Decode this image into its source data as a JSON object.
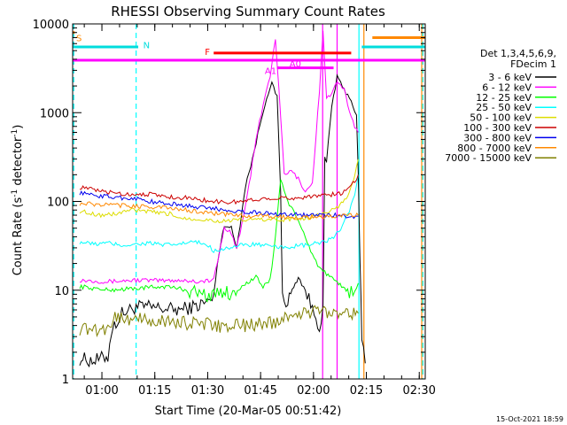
{
  "chart_data": {
    "type": "line",
    "title": "RHESSI Observing Summary Count Rates",
    "xlabel": "Start Time (20-Mar-05 00:51:42)",
    "ylabel": "Count Rate (s",
    "ylabel_sup": "-1",
    "ylabel_tail": " detector",
    "ylabel_sup2": "-1",
    "ylabel_end": ")",
    "x_range_minutes": [
      0.0,
      100.0
    ],
    "y_range": [
      1,
      10000
    ],
    "y_scale": "log",
    "x_ticks": [
      {
        "label": "01:00",
        "t": 8.3
      },
      {
        "label": "01:15",
        "t": 23.3
      },
      {
        "label": "01:30",
        "t": 38.3
      },
      {
        "label": "01:45",
        "t": 53.3
      },
      {
        "label": "02:00",
        "t": 68.3
      },
      {
        "label": "02:15",
        "t": 83.3
      },
      {
        "label": "02:30",
        "t": 98.3
      }
    ],
    "y_ticks": [
      {
        "label": "1",
        "v": 1
      },
      {
        "label": "10",
        "v": 10
      },
      {
        "label": "100",
        "v": 100
      },
      {
        "label": "1000",
        "v": 1000
      },
      {
        "label": "10000",
        "v": 10000
      }
    ],
    "legend_header": [
      "Det 1,3,4,5,6,9,",
      "FDecim 1"
    ],
    "legend_placement": "right",
    "series": [
      {
        "name": "3 - 6 keV",
        "color": "#000000",
        "points": [
          [
            2,
            1.7
          ],
          [
            6,
            1.6
          ],
          [
            10,
            1.8
          ],
          [
            11,
            3.5
          ],
          [
            14,
            5.5
          ],
          [
            18,
            6.5
          ],
          [
            22,
            6.4
          ],
          [
            26,
            6.2
          ],
          [
            30,
            6.0
          ],
          [
            35,
            6.6
          ],
          [
            40,
            8
          ],
          [
            41,
            20
          ],
          [
            43,
            55
          ],
          [
            45,
            50
          ],
          [
            46.5,
            30
          ],
          [
            47.5,
            55
          ],
          [
            49,
            150
          ],
          [
            51,
            300
          ],
          [
            53,
            700
          ],
          [
            55,
            1500
          ],
          [
            56.5,
            2100
          ],
          [
            58,
            1500
          ],
          [
            59,
            130
          ],
          [
            59.5,
            8
          ],
          [
            61,
            7.5
          ],
          [
            64,
            14
          ],
          [
            66,
            10
          ],
          [
            68,
            6
          ],
          [
            70,
            4
          ],
          [
            71,
            6
          ],
          [
            71.5,
            300
          ],
          [
            72,
            280
          ],
          [
            73.5,
            1200
          ],
          [
            75,
            2500
          ],
          [
            77,
            1800
          ],
          [
            79,
            1400
          ],
          [
            80.5,
            900
          ],
          [
            81,
            200
          ],
          [
            81.5,
            20
          ],
          [
            82,
            3
          ],
          [
            83,
            1.5
          ]
        ]
      },
      {
        "name": "6 - 12 keV",
        "color": "#ff00ff",
        "points": [
          [
            2,
            13
          ],
          [
            10,
            12.5
          ],
          [
            18,
            13
          ],
          [
            26,
            12.8
          ],
          [
            30,
            13
          ],
          [
            36,
            12.5
          ],
          [
            40,
            13
          ],
          [
            41,
            20
          ],
          [
            43,
            50
          ],
          [
            45,
            45
          ],
          [
            46.5,
            30
          ],
          [
            48,
            55
          ],
          [
            50,
            150
          ],
          [
            52,
            500
          ],
          [
            54,
            1200
          ],
          [
            56,
            2600
          ],
          [
            57.5,
            7000
          ],
          [
            59,
            900
          ],
          [
            60,
            200
          ],
          [
            62,
            220
          ],
          [
            64,
            180
          ],
          [
            66,
            130
          ],
          [
            68,
            160
          ],
          [
            70,
            1800
          ],
          [
            71,
            8000
          ],
          [
            72,
            1500
          ],
          [
            73.5,
            1600
          ],
          [
            75,
            2200
          ],
          [
            77,
            1800
          ],
          [
            79,
            900
          ],
          [
            80,
            700
          ],
          [
            81,
            600
          ]
        ]
      },
      {
        "name": "12 - 25 keV",
        "color": "#00ff00",
        "points": [
          [
            2,
            11
          ],
          [
            10,
            10
          ],
          [
            18,
            10.5
          ],
          [
            26,
            11
          ],
          [
            30,
            10.5
          ],
          [
            35,
            9.5
          ],
          [
            40,
            8.5
          ],
          [
            42,
            10
          ],
          [
            45,
            9
          ],
          [
            48,
            11
          ],
          [
            52,
            14
          ],
          [
            54,
            11
          ],
          [
            56,
            13
          ],
          [
            57.5,
            40
          ],
          [
            59,
            180
          ],
          [
            61,
            100
          ],
          [
            64,
            60
          ],
          [
            66,
            40
          ],
          [
            68,
            25
          ],
          [
            70,
            18
          ],
          [
            72,
            15
          ],
          [
            75,
            12
          ],
          [
            78,
            10
          ],
          [
            80,
            9
          ],
          [
            81,
            12
          ]
        ]
      },
      {
        "name": "25 - 50 keV",
        "color": "#00ffff",
        "points": [
          [
            2,
            35
          ],
          [
            6,
            33
          ],
          [
            10,
            34
          ],
          [
            14,
            32
          ],
          [
            18,
            33
          ],
          [
            22,
            34
          ],
          [
            26,
            32
          ],
          [
            30,
            33
          ],
          [
            34,
            35
          ],
          [
            38,
            33
          ],
          [
            40,
            28
          ],
          [
            44,
            30
          ],
          [
            48,
            32
          ],
          [
            52,
            33
          ],
          [
            56,
            31
          ],
          [
            58,
            30
          ],
          [
            62,
            31
          ],
          [
            66,
            32
          ],
          [
            70,
            34
          ],
          [
            74,
            38
          ],
          [
            76,
            50
          ],
          [
            78,
            70
          ],
          [
            80,
            120
          ],
          [
            81,
            200
          ]
        ]
      },
      {
        "name": "50 - 100 keV",
        "color": "#dddd00",
        "points": [
          [
            2,
            78
          ],
          [
            8,
            70
          ],
          [
            12,
            72
          ],
          [
            16,
            80
          ],
          [
            20,
            78
          ],
          [
            24,
            74
          ],
          [
            28,
            72
          ],
          [
            30,
            66
          ],
          [
            34,
            64
          ],
          [
            38,
            62
          ],
          [
            42,
            60
          ],
          [
            46,
            61
          ],
          [
            50,
            62
          ],
          [
            54,
            63
          ],
          [
            58,
            62
          ],
          [
            62,
            63
          ],
          [
            66,
            65
          ],
          [
            70,
            70
          ],
          [
            74,
            80
          ],
          [
            78,
            110
          ],
          [
            80,
            200
          ],
          [
            81,
            300
          ]
        ]
      },
      {
        "name": "100 - 300 keV",
        "color": "#cc0000",
        "points": [
          [
            2,
            145
          ],
          [
            8,
            130
          ],
          [
            12,
            125
          ],
          [
            16,
            120
          ],
          [
            20,
            122
          ],
          [
            24,
            118
          ],
          [
            28,
            112
          ],
          [
            32,
            110
          ],
          [
            36,
            105
          ],
          [
            40,
            100
          ],
          [
            44,
            98
          ],
          [
            48,
            100
          ],
          [
            52,
            105
          ],
          [
            56,
            110
          ],
          [
            60,
            108
          ],
          [
            64,
            110
          ],
          [
            68,
            115
          ],
          [
            72,
            118
          ],
          [
            76,
            122
          ],
          [
            78,
            140
          ],
          [
            80,
            170
          ],
          [
            81,
            200
          ]
        ]
      },
      {
        "name": "300 - 800 keV",
        "color": "#0000ee",
        "points": [
          [
            2,
            125
          ],
          [
            8,
            115
          ],
          [
            14,
            110
          ],
          [
            18,
            108
          ],
          [
            22,
            100
          ],
          [
            26,
            95
          ],
          [
            30,
            92
          ],
          [
            34,
            88
          ],
          [
            38,
            84
          ],
          [
            42,
            82
          ],
          [
            46,
            78
          ],
          [
            50,
            76
          ],
          [
            54,
            74
          ],
          [
            58,
            72
          ],
          [
            62,
            72
          ],
          [
            66,
            70
          ],
          [
            70,
            70
          ],
          [
            74,
            70
          ],
          [
            78,
            68
          ],
          [
            81,
            68
          ]
        ]
      },
      {
        "name": "800 - 7000 keV",
        "color": "#ff8800",
        "points": [
          [
            2,
            95
          ],
          [
            8,
            92
          ],
          [
            14,
            90
          ],
          [
            20,
            88
          ],
          [
            26,
            85
          ],
          [
            32,
            80
          ],
          [
            38,
            75
          ],
          [
            42,
            72
          ],
          [
            46,
            70
          ],
          [
            50,
            69
          ],
          [
            54,
            68
          ],
          [
            58,
            67
          ],
          [
            62,
            66
          ],
          [
            66,
            66
          ],
          [
            70,
            67
          ],
          [
            74,
            68
          ],
          [
            78,
            69
          ],
          [
            81,
            70
          ]
        ]
      },
      {
        "name": "7000 - 15000 keV",
        "color": "#808000",
        "points": [
          [
            2,
            3.7
          ],
          [
            6,
            3.6
          ],
          [
            10,
            3.8
          ],
          [
            12,
            5
          ],
          [
            16,
            4.8
          ],
          [
            20,
            4.6
          ],
          [
            24,
            4.5
          ],
          [
            28,
            4.4
          ],
          [
            32,
            4.3
          ],
          [
            36,
            4.2
          ],
          [
            40,
            4.0
          ],
          [
            44,
            3.9
          ],
          [
            48,
            4.0
          ],
          [
            52,
            4.1
          ],
          [
            56,
            4.3
          ],
          [
            58,
            4.5
          ],
          [
            62,
            5.3
          ],
          [
            66,
            5.6
          ],
          [
            70,
            5.8
          ],
          [
            74,
            5.8
          ],
          [
            78,
            5.7
          ],
          [
            81,
            5.5
          ]
        ]
      }
    ],
    "state_bars": [
      {
        "label": "S",
        "color": "#ff8800",
        "t0": 0.0,
        "t1": 0.6,
        "v": 8000,
        "label_t": 1.0,
        "label_v": 7000
      },
      {
        "label": "N",
        "color": "#00dddd",
        "t0": 0.0,
        "t1": 18.6,
        "v": 5500,
        "label_t": 20.0,
        "label_v": 5800
      },
      {
        "label": "F",
        "color": "#ff0000",
        "t0": 40.0,
        "t1": 79.0,
        "v": 4700,
        "label_t": 37.5,
        "label_v": 4900
      },
      {
        "label": "A0",
        "color": "#ff00ff",
        "t0": 58.0,
        "t1": 74.0,
        "v": 3200,
        "label_t": 61.5,
        "label_v": 3600
      },
      {
        "label": "A1",
        "color": "#ff00ff",
        "t0": 58.0,
        "t1": 58.5,
        "v": 3200,
        "label_t": 54.5,
        "label_v": 3000
      },
      {
        "label": "",
        "color": "#ff00ff",
        "t0": 0.0,
        "t1": 100.0,
        "v": 3900
      },
      {
        "label": "",
        "color": "#00dddd",
        "t0": 82.0,
        "t1": 100.0,
        "v": 5500
      },
      {
        "label": "",
        "color": "#ff8800",
        "t0": 85.0,
        "t1": 100.0,
        "v": 7000
      }
    ],
    "vertical_lines": [
      {
        "t": 0.3,
        "color": "#00ffff",
        "dashed": true
      },
      {
        "t": 18.0,
        "color": "#00ffff",
        "dashed": true
      },
      {
        "t": 81.2,
        "color": "#00ffff",
        "dashed": false
      },
      {
        "t": 82.6,
        "color": "#ff8800",
        "dashed": false
      },
      {
        "t": 99.0,
        "color": "#ff8800",
        "dashed": false
      },
      {
        "t": 99.3,
        "color": "#00ffff",
        "dashed": true
      },
      {
        "t": 70.9,
        "color": "#ff00ff",
        "dashed": false
      },
      {
        "t": 75.0,
        "color": "#ff00ff",
        "dashed": false
      }
    ],
    "timestamp": "15-Oct-2021 18:59"
  }
}
